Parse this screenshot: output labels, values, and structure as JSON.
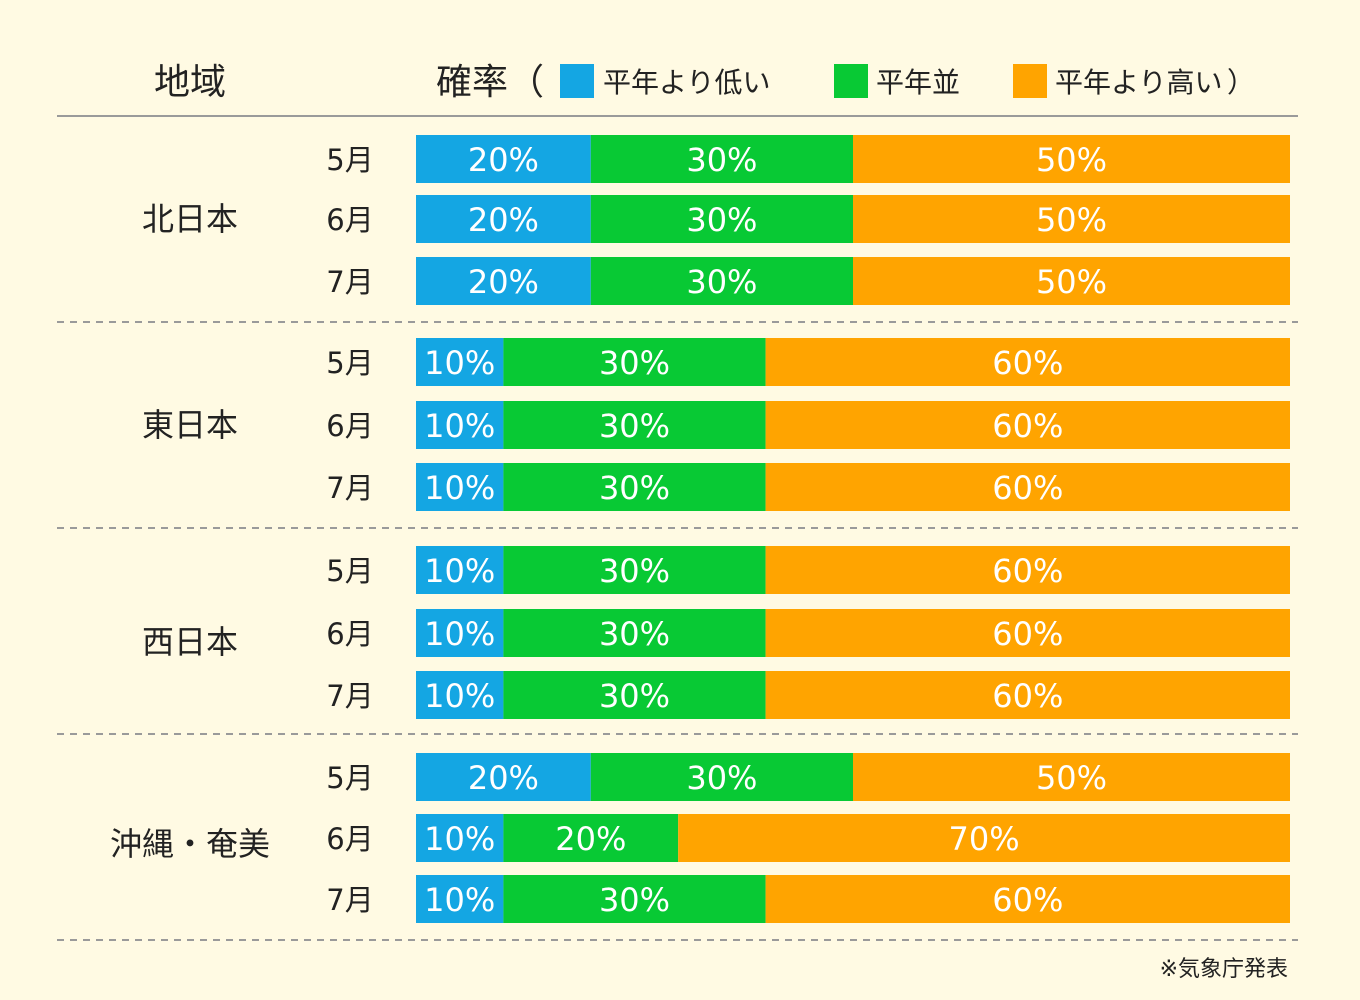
{
  "chart_data": {
    "type": "bar",
    "stacked": true,
    "orientation": "horizontal",
    "header_region": "地域",
    "header_prob": "確率（",
    "legend_close": "）",
    "legend": [
      {
        "name": "平年より低い",
        "color": "#14a6e3"
      },
      {
        "name": "平年並",
        "color": "#08c934"
      },
      {
        "name": "平年より高い",
        "color": "#ffa400"
      }
    ],
    "regions": [
      {
        "name": "北日本",
        "rows": [
          {
            "month": "5月",
            "values": [
              20,
              30,
              50
            ]
          },
          {
            "month": "6月",
            "values": [
              20,
              30,
              50
            ]
          },
          {
            "month": "7月",
            "values": [
              20,
              30,
              50
            ]
          }
        ]
      },
      {
        "name": "東日本",
        "rows": [
          {
            "month": "5月",
            "values": [
              10,
              30,
              60
            ]
          },
          {
            "month": "6月",
            "values": [
              10,
              30,
              60
            ]
          },
          {
            "month": "7月",
            "values": [
              10,
              30,
              60
            ]
          }
        ]
      },
      {
        "name": "西日本",
        "rows": [
          {
            "month": "5月",
            "values": [
              10,
              30,
              60
            ]
          },
          {
            "month": "6月",
            "values": [
              10,
              30,
              60
            ]
          },
          {
            "month": "7月",
            "values": [
              10,
              30,
              60
            ]
          }
        ]
      },
      {
        "name": "沖縄・奄美",
        "rows": [
          {
            "month": "5月",
            "values": [
              20,
              30,
              50
            ]
          },
          {
            "month": "6月",
            "values": [
              10,
              20,
              70
            ]
          },
          {
            "month": "7月",
            "values": [
              10,
              30,
              60
            ]
          }
        ]
      }
    ],
    "unit": "%",
    "source": "※気象庁発表"
  }
}
